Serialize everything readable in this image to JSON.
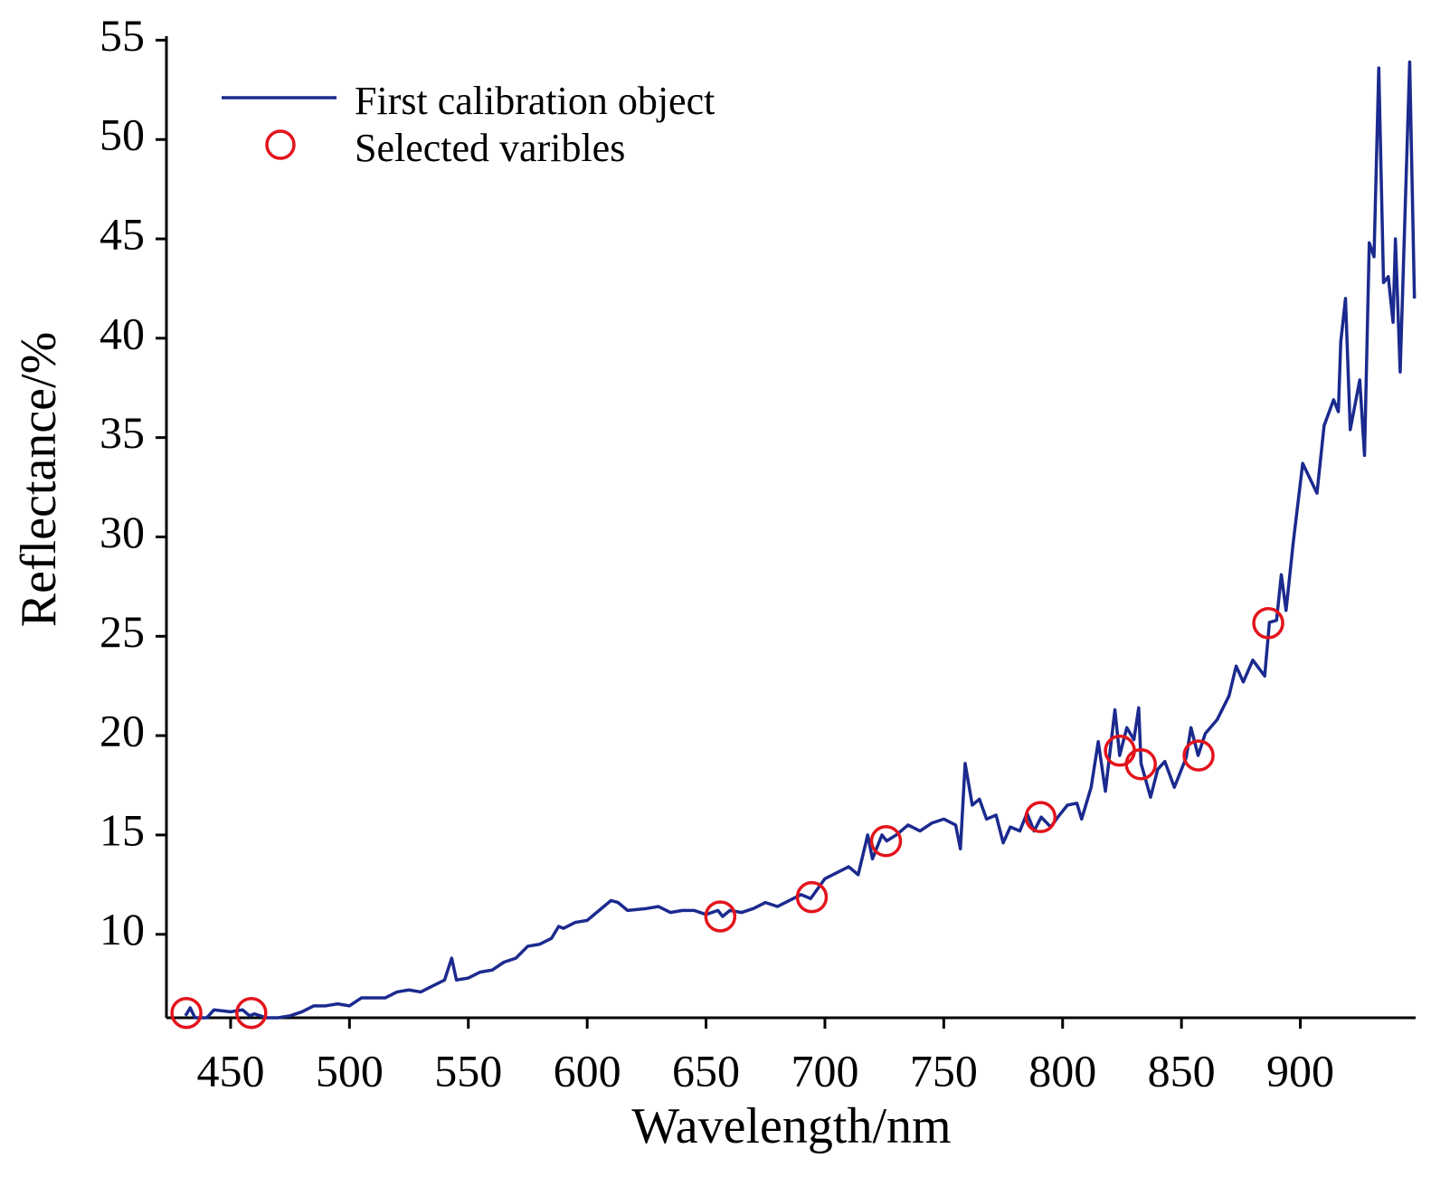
{
  "chart_data": {
    "type": "line",
    "xlabel": "Wavelength/nm",
    "ylabel": "Reflectance/%",
    "xlim": [
      423,
      948.5
    ],
    "ylim": [
      5.8,
      55.2
    ],
    "xticks": [
      450,
      500,
      550,
      600,
      650,
      700,
      750,
      800,
      850,
      900
    ],
    "yticks": [
      10,
      15,
      20,
      25,
      30,
      35,
      40,
      45,
      50,
      55
    ],
    "legend": "upper left",
    "series": [
      {
        "name": "First calibration object",
        "type": "line",
        "color": "#1b2a8e",
        "x": [
          431,
          433,
          435,
          440,
          443,
          450,
          455,
          458,
          460,
          465,
          470,
          475,
          480,
          485,
          490,
          495,
          500,
          505,
          515,
          520,
          525,
          530,
          535,
          540,
          543,
          545,
          550,
          555,
          560,
          565,
          570,
          575,
          580,
          585,
          588,
          590,
          595,
          600,
          605,
          610,
          613,
          617,
          625,
          630,
          635,
          640,
          645,
          650,
          655,
          657,
          660,
          665,
          670,
          675,
          680,
          685,
          690,
          694,
          697,
          700,
          705,
          710,
          714,
          718,
          720,
          724,
          726,
          730,
          735,
          740,
          745,
          750,
          755,
          757,
          759,
          762,
          765,
          768,
          772,
          775,
          778,
          782,
          785,
          788,
          791,
          795,
          798,
          802,
          806,
          808,
          812,
          815,
          818,
          822,
          824,
          827,
          830,
          832,
          833,
          837,
          840,
          843,
          847,
          852,
          854,
          857,
          860,
          865,
          870,
          873,
          876,
          880,
          885,
          887,
          890,
          892,
          894,
          897,
          901,
          907,
          910,
          914,
          916,
          917,
          919,
          921,
          925,
          927,
          929,
          931,
          933,
          935,
          937,
          939,
          940,
          942,
          946,
          948
        ],
        "values": [
          5.9,
          6.3,
          5.8,
          5.8,
          6.2,
          6.1,
          6.2,
          5.9,
          6.0,
          5.8,
          5.8,
          5.9,
          6.1,
          6.4,
          6.4,
          6.5,
          6.4,
          6.8,
          6.8,
          7.1,
          7.2,
          7.1,
          7.4,
          7.7,
          8.8,
          7.7,
          7.8,
          8.1,
          8.2,
          8.6,
          8.8,
          9.4,
          9.5,
          9.8,
          10.4,
          10.3,
          10.6,
          10.7,
          11.2,
          11.7,
          11.6,
          11.2,
          11.3,
          11.4,
          11.1,
          11.2,
          11.2,
          11.0,
          11.2,
          10.9,
          11.2,
          11.1,
          11.3,
          11.6,
          11.4,
          11.7,
          12.0,
          11.8,
          12.3,
          12.8,
          13.1,
          13.4,
          13.0,
          15.0,
          13.8,
          15.0,
          14.7,
          15.0,
          15.5,
          15.2,
          15.6,
          15.8,
          15.5,
          14.3,
          18.6,
          16.5,
          16.8,
          15.8,
          16.0,
          14.6,
          15.4,
          15.2,
          16.1,
          15.2,
          15.9,
          15.4,
          15.9,
          16.5,
          16.6,
          15.8,
          17.4,
          19.7,
          17.2,
          21.3,
          19.0,
          20.4,
          19.8,
          21.4,
          18.6,
          16.9,
          18.3,
          18.7,
          17.4,
          18.9,
          20.4,
          19.0,
          20.1,
          20.8,
          22.0,
          23.5,
          22.7,
          23.8,
          23.0,
          25.7,
          25.8,
          28.1,
          26.3,
          29.7,
          33.7,
          32.2,
          35.6,
          36.9,
          36.3,
          39.8,
          42.0,
          35.4,
          37.9,
          34.1,
          44.8,
          44.1,
          53.6,
          42.8,
          43.1,
          40.8,
          45.0,
          38.3,
          53.9,
          42.0
        ]
      },
      {
        "name": "Selected varibles",
        "type": "scatter",
        "color": "#e3141c",
        "x": [
          431.4,
          458.7,
          656,
          694.5,
          725.7,
          790.7,
          824.1,
          832.9,
          857.2,
          886.5
        ],
        "values": [
          6.04,
          6.04,
          10.9,
          11.87,
          14.69,
          15.9,
          19.24,
          18.56,
          19.0,
          25.66
        ]
      }
    ]
  }
}
